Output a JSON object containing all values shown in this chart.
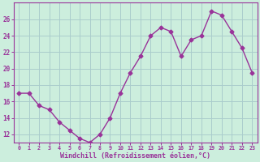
{
  "x": [
    0,
    1,
    2,
    3,
    4,
    5,
    6,
    7,
    8,
    9,
    10,
    11,
    12,
    13,
    14,
    15,
    16,
    17,
    18,
    19,
    20,
    21,
    22,
    23
  ],
  "y": [
    17,
    17,
    15.5,
    15,
    13.5,
    12.5,
    11.5,
    11,
    12,
    14,
    17,
    19.5,
    21.5,
    24,
    25,
    24.5,
    21.5,
    23.5,
    24,
    27,
    26.5,
    24.5,
    22.5,
    19.5
  ],
  "line_color": "#993399",
  "marker": "D",
  "marker_size": 2.5,
  "bg_color": "#cceedd",
  "grid_color": "#aacccc",
  "xlabel": "Windchill (Refroidissement éolien,°C)",
  "ylim": [
    11,
    28
  ],
  "xlim": [
    -0.5,
    23.5
  ],
  "yticks": [
    12,
    14,
    16,
    18,
    20,
    22,
    24,
    26
  ],
  "xticks": [
    0,
    1,
    2,
    3,
    4,
    5,
    6,
    7,
    8,
    9,
    10,
    11,
    12,
    13,
    14,
    15,
    16,
    17,
    18,
    19,
    20,
    21,
    22,
    23
  ],
  "tick_color": "#993399",
  "label_color": "#993399",
  "font": "monospace",
  "xtick_fontsize": 4.8,
  "ytick_fontsize": 5.5,
  "xlabel_fontsize": 6.0
}
